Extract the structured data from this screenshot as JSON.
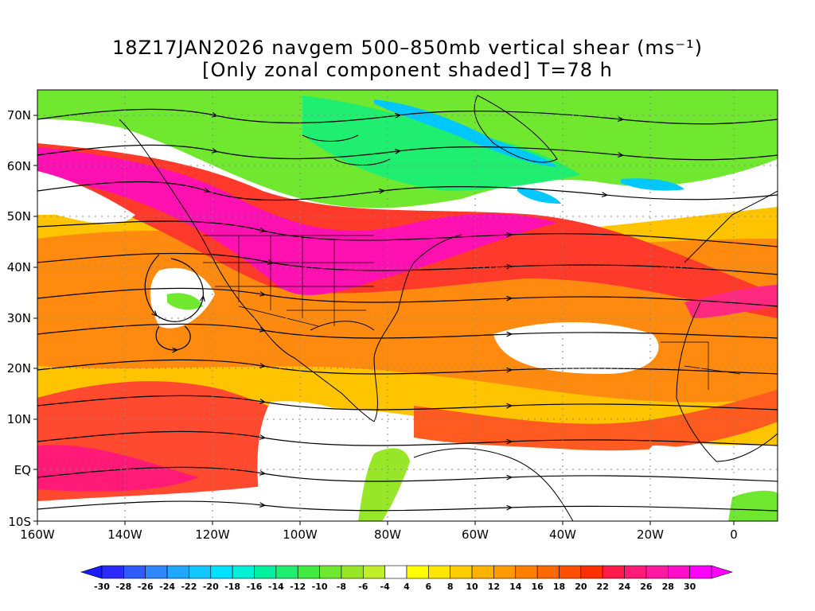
{
  "title": {
    "line1": "18Z17JAN2026 navgem 500–850mb vertical shear (ms⁻¹)",
    "line2": "[Only zonal component shaded] T=78 h"
  },
  "lat_labels": [
    "70N",
    "60N",
    "50N",
    "40N",
    "30N",
    "20N",
    "10N",
    "EQ",
    "10S"
  ],
  "lon_labels": [
    "160W",
    "140W",
    "120W",
    "100W",
    "80W",
    "60W",
    "40W",
    "20W",
    "0"
  ],
  "colorbar": {
    "labels": [
      "-30",
      "-28",
      "-26",
      "-24",
      "-22",
      "-20",
      "-18",
      "-16",
      "-14",
      "-12",
      "-10",
      "-8",
      "-6",
      "-4",
      "4",
      "6",
      "8",
      "10",
      "12",
      "14",
      "16",
      "18",
      "20",
      "22",
      "24",
      "26",
      "28",
      "30"
    ],
    "colors": [
      "#2b2bff",
      "#2f5cff",
      "#2f86ff",
      "#20a8ff",
      "#12c6ff",
      "#00e0ff",
      "#00f0d8",
      "#00f0a0",
      "#20ee70",
      "#40ea40",
      "#70e830",
      "#98e628",
      "#c0ee28",
      "#ffffff",
      "#ffff00",
      "#ffe600",
      "#ffcc00",
      "#ffb200",
      "#ff9a00",
      "#ff8000",
      "#ff6a00",
      "#ff5000",
      "#ff3000",
      "#ff1a4a",
      "#ff1a78",
      "#ff18a0",
      "#ff10c8",
      "#ff00ff"
    ]
  },
  "colors": {
    "strong_positive": "#ff10b0",
    "positive_high": "#ff3a2a",
    "positive_mid": "#ff7a10",
    "positive_low": "#ffc400",
    "weak": "#ffee00",
    "negative_low": "#98e628",
    "negative_mid": "#20ee70",
    "negative_high": "#00c0ff"
  }
}
